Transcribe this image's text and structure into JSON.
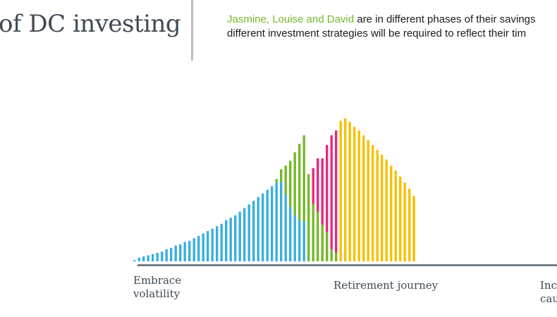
{
  "header": {
    "title": "of DC investing",
    "intro_names": "Jasmine, Louise and David",
    "intro_rest_line1": " are in different phases of their savings",
    "intro_line2": "different investment strategies will be required to reflect their tim"
  },
  "colors": {
    "blue": "#3aaee0",
    "green": "#76b82a",
    "magenta": "#e6287f",
    "yellow": "#f6c000",
    "axis": "#5a6670"
  },
  "chart_data": {
    "type": "bar",
    "stacked": true,
    "x_labels": {
      "left": [
        "Embrace",
        "volatility"
      ],
      "center": "Retirement journey",
      "right": [
        "Inc",
        "cau"
      ]
    },
    "bar_count": 62,
    "series": [
      {
        "color_key": "blue",
        "values": [
          1,
          3,
          4,
          5,
          6,
          7,
          8,
          10,
          11,
          13,
          14,
          16,
          17,
          19,
          21,
          23,
          25,
          27,
          29,
          31,
          34,
          36,
          38,
          41,
          44,
          47,
          50,
          53,
          56,
          59,
          62,
          65,
          66,
          55,
          45,
          38,
          34,
          33,
          0,
          0,
          0,
          0,
          0,
          0,
          0,
          0,
          0,
          0,
          0,
          0,
          0,
          0,
          0,
          0,
          0,
          0,
          0,
          0,
          0,
          0,
          0,
          0
        ]
      },
      {
        "color_key": "green",
        "values": [
          0,
          0,
          0,
          0,
          0,
          0,
          0,
          0,
          0,
          0,
          0,
          0,
          0,
          0,
          0,
          0,
          0,
          0,
          0,
          0,
          0,
          0,
          0,
          0,
          0,
          0,
          0,
          0,
          0,
          0,
          0,
          3,
          10,
          24,
          38,
          52,
          63,
          71,
          72,
          47,
          41,
          30,
          24,
          10,
          7,
          0,
          0,
          0,
          0,
          0,
          0,
          0,
          0,
          0,
          0,
          0,
          0,
          0,
          0,
          0,
          0,
          0
        ]
      },
      {
        "color_key": "magenta",
        "values": [
          0,
          0,
          0,
          0,
          0,
          0,
          0,
          0,
          0,
          0,
          0,
          0,
          0,
          0,
          0,
          0,
          0,
          0,
          0,
          0,
          0,
          0,
          0,
          0,
          0,
          0,
          0,
          0,
          0,
          0,
          0,
          0,
          0,
          0,
          0,
          0,
          0,
          0,
          0,
          30,
          44,
          55,
          72,
          94,
          101,
          0,
          0,
          0,
          0,
          0,
          0,
          0,
          0,
          0,
          0,
          0,
          0,
          0,
          0,
          0,
          0,
          0
        ]
      },
      {
        "color_key": "yellow",
        "values": [
          0,
          0,
          0,
          0,
          0,
          0,
          0,
          0,
          0,
          0,
          0,
          0,
          0,
          0,
          0,
          0,
          0,
          0,
          0,
          0,
          0,
          0,
          0,
          0,
          0,
          0,
          0,
          0,
          0,
          0,
          0,
          0,
          0,
          0,
          0,
          0,
          0,
          0,
          0,
          0,
          0,
          0,
          0,
          0,
          0,
          116,
          118,
          115,
          111,
          108,
          104,
          100,
          96,
          92,
          88,
          84,
          79,
          75,
          70,
          65,
          60,
          54
        ]
      }
    ]
  }
}
